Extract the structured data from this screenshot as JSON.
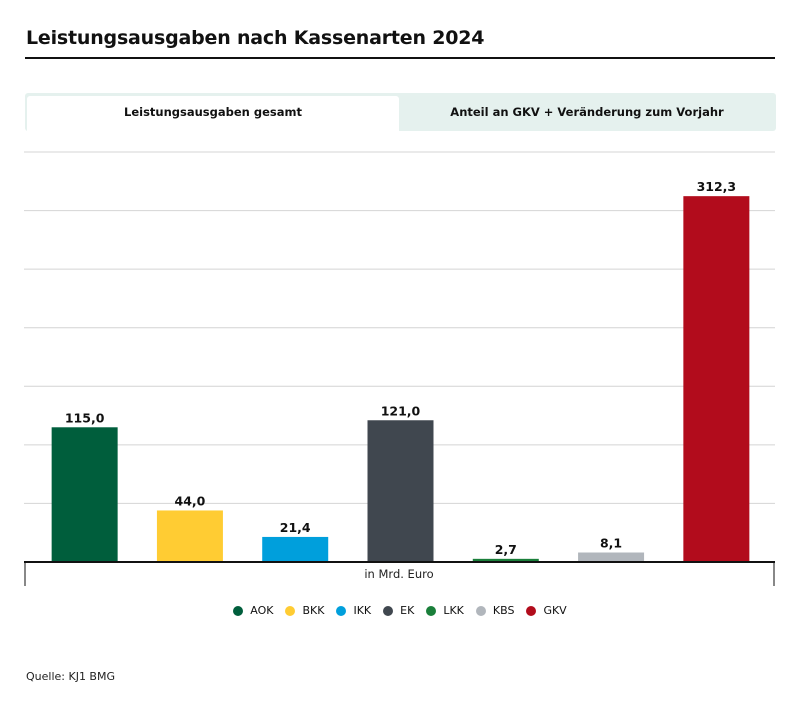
{
  "header": {
    "title": "Leistungsausgaben nach Kassenarten 2024"
  },
  "tabs": [
    {
      "label": "Leistungsausgaben gesamt",
      "active": true
    },
    {
      "label": "Anteil an GKV + Veränderung zum Vorjahr",
      "active": false
    }
  ],
  "footer": {
    "source": "Quelle: KJ1 BMG"
  },
  "chart_data": {
    "type": "bar",
    "title": "Leistungsausgaben nach Kassenarten 2024",
    "xlabel": "in Mrd. Euro",
    "ylabel": "",
    "categories": [
      "AOK",
      "BKK",
      "IKK",
      "EK",
      "LKK",
      "KBS",
      "GKV"
    ],
    "values": [
      115.0,
      44.0,
      21.4,
      121.0,
      2.7,
      8.1,
      312.3
    ],
    "value_labels": [
      "115,0",
      "44,0",
      "21,4",
      "121,0",
      "2,7",
      "8,1",
      "312,3"
    ],
    "colors": [
      "#005e3c",
      "#ffcc33",
      "#009fdc",
      "#40474f",
      "#1a7f3a",
      "#b1b6bc",
      "#b20c1c"
    ],
    "ylim": [
      0,
      350
    ],
    "gridline_step": 50,
    "grid": true,
    "y_tick_labels_shown": false,
    "legend": {
      "position": "bottom-center",
      "entries": [
        "AOK",
        "BKK",
        "IKK",
        "EK",
        "LKK",
        "KBS",
        "GKV"
      ]
    }
  }
}
